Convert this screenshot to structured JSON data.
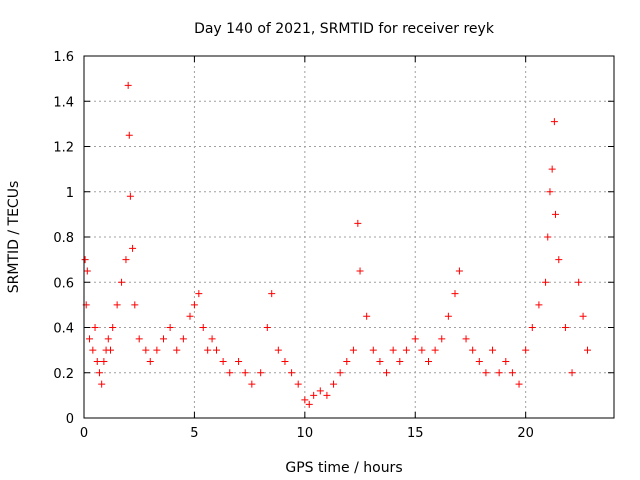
{
  "chart_data": {
    "type": "scatter",
    "title": "Day 140 of 2021, SRMTID for receiver reyk",
    "xlabel": "GPS time / hours",
    "ylabel": "SRMTID / TECUs",
    "xlim": [
      0,
      24
    ],
    "ylim": [
      0,
      1.6
    ],
    "x_ticks": [
      0,
      5,
      10,
      15,
      20
    ],
    "y_ticks": [
      0,
      0.2,
      0.4,
      0.6,
      0.8,
      1,
      1.2,
      1.4,
      1.6
    ],
    "x_tick_labels": [
      "0",
      "5",
      "10",
      "15",
      "20"
    ],
    "y_tick_labels": [
      "0",
      "0.2",
      "0.4",
      "0.6",
      "0.8",
      "1",
      "1.2",
      "1.4",
      "1.6"
    ],
    "grid": true,
    "marker": "+",
    "series": [
      {
        "name": "SRMTID",
        "color": "#ff0000",
        "x": [
          0.05,
          0.1,
          0.15,
          0.25,
          0.4,
          0.5,
          0.6,
          0.7,
          0.8,
          0.9,
          1.0,
          1.1,
          1.2,
          1.3,
          1.5,
          1.7,
          1.9,
          2.0,
          2.05,
          2.1,
          2.2,
          2.3,
          2.5,
          2.8,
          3.0,
          3.3,
          3.6,
          3.9,
          4.2,
          4.5,
          4.8,
          5.0,
          5.2,
          5.4,
          5.6,
          5.8,
          6.0,
          6.3,
          6.6,
          7.0,
          7.3,
          7.6,
          8.0,
          8.3,
          8.5,
          8.8,
          9.1,
          9.4,
          9.7,
          10.0,
          10.2,
          10.4,
          10.7,
          11.0,
          11.3,
          11.6,
          11.9,
          12.2,
          12.4,
          12.5,
          12.8,
          13.1,
          13.4,
          13.7,
          14.0,
          14.3,
          14.6,
          15.0,
          15.3,
          15.6,
          15.9,
          16.2,
          16.5,
          16.8,
          17.0,
          17.3,
          17.6,
          17.9,
          18.2,
          18.5,
          18.8,
          19.1,
          19.4,
          19.7,
          20.0,
          20.3,
          20.6,
          20.9,
          21.0,
          21.1,
          21.2,
          21.3,
          21.35,
          21.5,
          21.8,
          22.1,
          22.4,
          22.6,
          22.8
        ],
        "y": [
          0.7,
          0.5,
          0.65,
          0.35,
          0.3,
          0.4,
          0.25,
          0.2,
          0.15,
          0.25,
          0.3,
          0.35,
          0.3,
          0.4,
          0.5,
          0.6,
          0.7,
          1.47,
          1.25,
          0.98,
          0.75,
          0.5,
          0.35,
          0.3,
          0.25,
          0.3,
          0.35,
          0.4,
          0.3,
          0.35,
          0.45,
          0.5,
          0.55,
          0.4,
          0.3,
          0.35,
          0.3,
          0.25,
          0.2,
          0.25,
          0.2,
          0.15,
          0.2,
          0.4,
          0.55,
          0.3,
          0.25,
          0.2,
          0.15,
          0.08,
          0.06,
          0.1,
          0.12,
          0.1,
          0.15,
          0.2,
          0.25,
          0.3,
          0.86,
          0.65,
          0.45,
          0.3,
          0.25,
          0.2,
          0.3,
          0.25,
          0.3,
          0.35,
          0.3,
          0.25,
          0.3,
          0.35,
          0.45,
          0.55,
          0.65,
          0.35,
          0.3,
          0.25,
          0.2,
          0.3,
          0.2,
          0.25,
          0.2,
          0.15,
          0.3,
          0.4,
          0.5,
          0.6,
          0.8,
          1.0,
          1.1,
          1.31,
          0.9,
          0.7,
          0.4,
          0.2,
          0.6,
          0.45,
          0.3
        ]
      }
    ]
  }
}
